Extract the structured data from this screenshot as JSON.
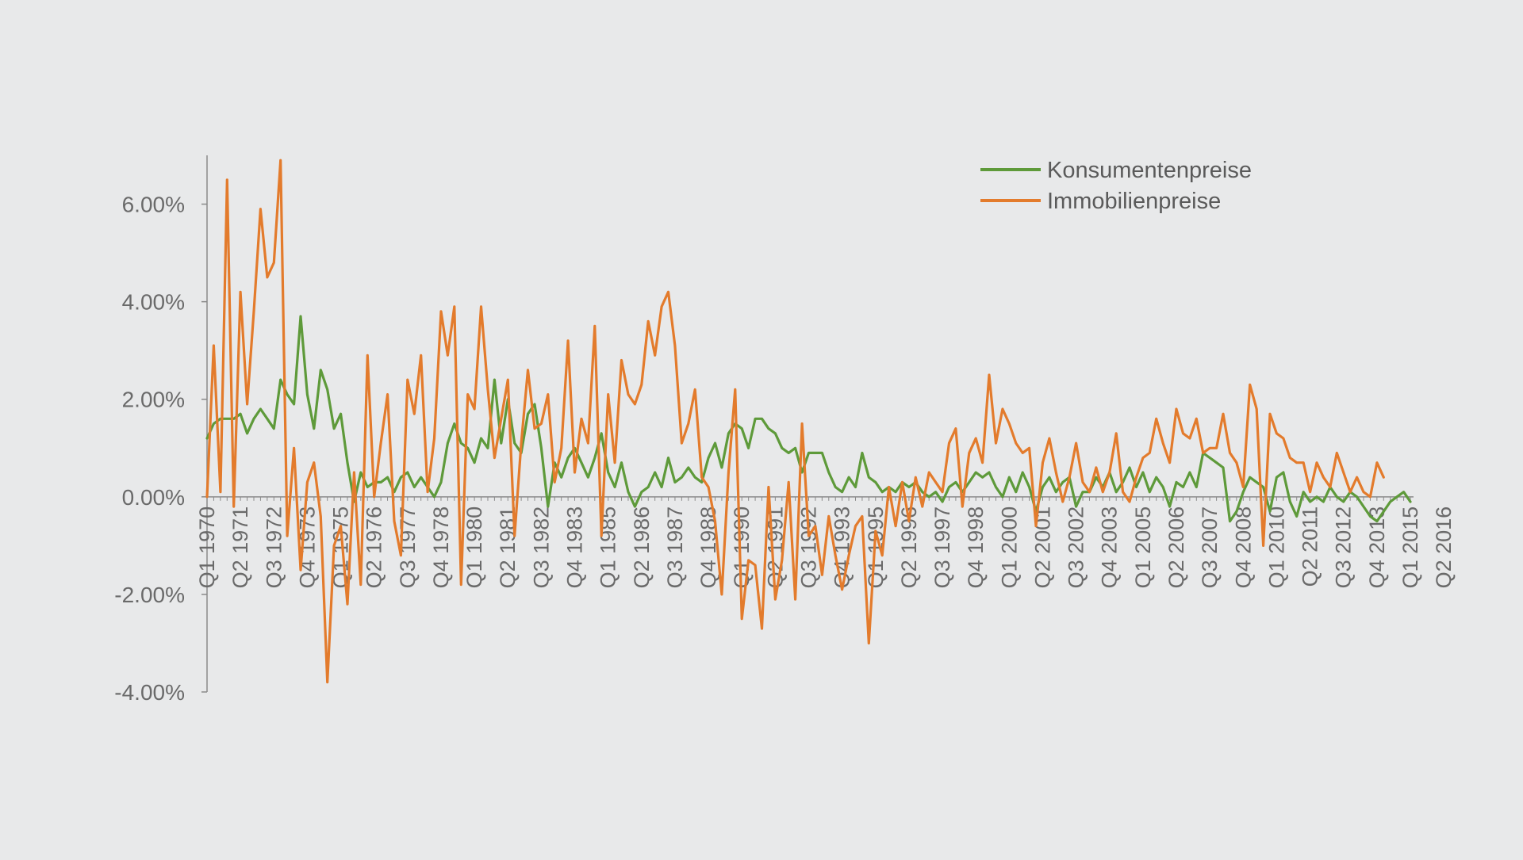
{
  "colors": {
    "background": "#e8e9ea",
    "axis": "#8a8a8a",
    "konsumentenpreise": "#5e9a3a",
    "immobilienpreise": "#e37b2c"
  },
  "chart_data": {
    "type": "line",
    "title": "",
    "xlabel": "",
    "ylabel": "",
    "ylim": [
      -0.04,
      0.07
    ],
    "y_ticks": [
      -0.04,
      -0.02,
      0.0,
      0.02,
      0.04,
      0.06
    ],
    "y_tick_labels": [
      "-4.00%",
      "-2.00%",
      "0.00%",
      "2.00%",
      "4.00%",
      "6.00%"
    ],
    "x_start": "Q1 1970",
    "x_tick_labels": [
      "Q1 1970",
      "Q2 1971",
      "Q3 1972",
      "Q4 1973",
      "Q1 1975",
      "Q2 1976",
      "Q3 1977",
      "Q4 1978",
      "Q1 1980",
      "Q2 1981",
      "Q3 1982",
      "Q4 1983",
      "Q1 1985",
      "Q2 1986",
      "Q3 1987",
      "Q4 1988",
      "Q1 1990",
      "Q2 1991",
      "Q3 1992",
      "Q4 1993",
      "Q1 1995",
      "Q2 1996",
      "Q3 1997",
      "Q4 1998",
      "Q1 2000",
      "Q2 2001",
      "Q3 2002",
      "Q4 2003",
      "Q1 2005",
      "Q2 2006",
      "Q3 2007",
      "Q4 2008",
      "Q1 2010",
      "Q2 2011",
      "Q3 2012",
      "Q4 2013",
      "Q1 2015",
      "Q2 2016"
    ],
    "grid": false,
    "legend": {
      "position": "top-right"
    },
    "series": [
      {
        "name": "Konsumentenpreise",
        "color": "#5e9a3a",
        "values": [
          0.012,
          0.015,
          0.016,
          0.016,
          0.016,
          0.017,
          0.013,
          0.016,
          0.018,
          0.016,
          0.014,
          0.024,
          0.021,
          0.019,
          0.037,
          0.021,
          0.014,
          0.026,
          0.022,
          0.014,
          0.017,
          0.007,
          -0.001,
          0.005,
          0.002,
          0.003,
          0.003,
          0.004,
          0.001,
          0.004,
          0.005,
          0.002,
          0.004,
          0.002,
          0.0,
          0.003,
          0.011,
          0.015,
          0.011,
          0.01,
          0.007,
          0.012,
          0.01,
          0.024,
          0.011,
          0.02,
          0.011,
          0.009,
          0.017,
          0.019,
          0.01,
          -0.002,
          0.007,
          0.004,
          0.008,
          0.01,
          0.007,
          0.004,
          0.008,
          0.013,
          0.005,
          0.002,
          0.007,
          0.001,
          -0.002,
          0.001,
          0.002,
          0.005,
          0.002,
          0.008,
          0.003,
          0.004,
          0.006,
          0.004,
          0.003,
          0.008,
          0.011,
          0.006,
          0.013,
          0.015,
          0.014,
          0.01,
          0.016,
          0.016,
          0.014,
          0.013,
          0.01,
          0.009,
          0.01,
          0.005,
          0.009,
          0.009,
          0.009,
          0.005,
          0.002,
          0.001,
          0.004,
          0.002,
          0.009,
          0.004,
          0.003,
          0.001,
          0.002,
          0.001,
          0.003,
          0.002,
          0.003,
          0.001,
          0.0,
          0.001,
          -0.001,
          0.002,
          0.003,
          0.001,
          0.003,
          0.005,
          0.004,
          0.005,
          0.002,
          0.0,
          0.004,
          0.001,
          0.005,
          0.002,
          -0.003,
          0.002,
          0.004,
          0.001,
          0.003,
          0.004,
          -0.002,
          0.001,
          0.001,
          0.004,
          0.002,
          0.005,
          0.001,
          0.003,
          0.006,
          0.002,
          0.005,
          0.001,
          0.004,
          0.002,
          -0.002,
          0.003,
          0.002,
          0.005,
          0.002,
          0.009,
          0.008,
          0.007,
          0.006,
          -0.005,
          -0.003,
          0.001,
          0.004,
          0.003,
          0.002,
          -0.003,
          0.004,
          0.005,
          -0.001,
          -0.004,
          0.001,
          -0.001,
          0.0,
          -0.001,
          0.002,
          0.0,
          -0.001,
          0.001,
          0.0,
          -0.002,
          -0.004,
          -0.005,
          -0.003,
          -0.001,
          0.0,
          0.001,
          -0.001
        ]
      },
      {
        "name": "Immobilienpreise",
        "color": "#e37b2c",
        "values": [
          0.0,
          0.031,
          0.001,
          0.065,
          -0.002,
          0.042,
          0.019,
          0.038,
          0.059,
          0.045,
          0.048,
          0.069,
          -0.008,
          0.01,
          -0.015,
          0.003,
          0.007,
          -0.004,
          -0.038,
          -0.01,
          -0.006,
          -0.022,
          0.005,
          -0.018,
          0.029,
          0.0,
          0.011,
          0.021,
          -0.005,
          -0.012,
          0.024,
          0.017,
          0.029,
          0.001,
          0.012,
          0.038,
          0.029,
          0.039,
          -0.018,
          0.021,
          0.018,
          0.039,
          0.022,
          0.008,
          0.016,
          0.024,
          -0.008,
          0.011,
          0.026,
          0.014,
          0.015,
          0.021,
          0.003,
          0.01,
          0.032,
          0.005,
          0.016,
          0.011,
          0.035,
          -0.008,
          0.021,
          0.007,
          0.028,
          0.021,
          0.019,
          0.023,
          0.036,
          0.029,
          0.039,
          0.042,
          0.031,
          0.011,
          0.015,
          0.022,
          0.004,
          0.002,
          -0.005,
          -0.02,
          0.005,
          0.022,
          -0.025,
          -0.013,
          -0.014,
          -0.027,
          0.002,
          -0.021,
          -0.013,
          0.003,
          -0.021,
          0.015,
          -0.008,
          -0.006,
          -0.016,
          -0.004,
          -0.012,
          -0.019,
          -0.012,
          -0.006,
          -0.004,
          -0.03,
          -0.007,
          -0.012,
          0.002,
          -0.006,
          0.003,
          -0.005,
          0.004,
          -0.002,
          0.005,
          0.003,
          0.001,
          0.011,
          0.014,
          -0.002,
          0.009,
          0.012,
          0.007,
          0.025,
          0.011,
          0.018,
          0.015,
          0.011,
          0.009,
          0.01,
          -0.006,
          0.007,
          0.012,
          0.005,
          -0.001,
          0.004,
          0.011,
          0.003,
          0.001,
          0.006,
          0.001,
          0.005,
          0.013,
          0.001,
          -0.001,
          0.004,
          0.008,
          0.009,
          0.016,
          0.011,
          0.007,
          0.018,
          0.013,
          0.012,
          0.016,
          0.009,
          0.01,
          0.01,
          0.017,
          0.009,
          0.007,
          0.002,
          0.023,
          0.018,
          -0.01,
          0.017,
          0.013,
          0.012,
          0.008,
          0.007,
          0.007,
          0.001,
          0.007,
          0.004,
          0.002,
          0.009,
          0.005,
          0.001,
          0.004,
          0.001,
          0.0,
          0.007,
          0.004
        ]
      }
    ]
  }
}
